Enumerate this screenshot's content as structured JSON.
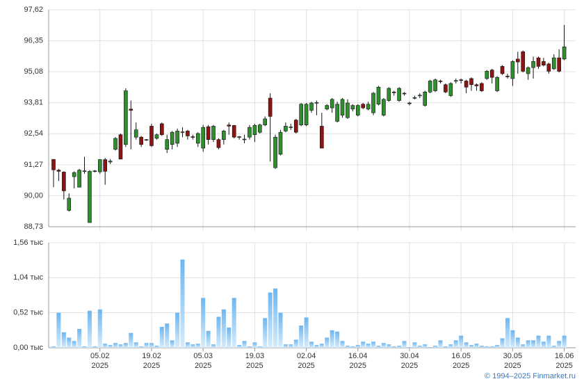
{
  "chart_data": [
    {
      "type": "candlestick",
      "open": [
        91.49,
        91.05,
        90.97,
        89.4,
        90.78,
        90.35,
        91.0,
        88.9,
        91.0,
        90.98,
        91.48,
        91.38,
        91.9,
        92.5,
        92.1,
        93.55,
        92.4,
        92.4,
        92.3,
        92.85,
        92.35,
        92.95,
        91.9,
        92.1,
        92.15,
        92.6,
        92.65,
        92.42,
        92.15,
        91.95,
        92.83,
        92.3,
        92.3,
        92.3,
        92.9,
        92.88,
        92.4,
        92.3,
        92.4,
        92.5,
        92.6,
        92.9,
        94.0,
        91.15,
        91.7,
        92.65,
        92.8,
        93.1,
        92.9,
        92.9,
        93.5,
        93.8,
        92.85,
        93.55,
        93.6,
        93.05,
        93.3,
        93.2,
        93.55,
        93.3,
        93.75,
        93.55,
        93.4,
        93.75,
        93.3,
        93.9,
        94.25,
        93.9,
        94.2,
        93.8,
        94.0,
        94.1,
        93.7,
        94.25,
        94.3,
        94.7,
        94.55,
        94.1,
        94.7,
        94.75,
        94.7,
        94.8,
        94.55,
        94.6,
        94.8,
        95.15,
        94.3,
        95.3,
        94.9,
        94.8,
        95.6,
        95.9,
        95.0,
        95.25,
        95.65,
        95.5,
        95.4,
        95.2,
        95.65,
        95.6
      ],
      "high": [
        91.49,
        91.1,
        91.0,
        90.1,
        91.0,
        91.1,
        91.6,
        91.05,
        91.05,
        91.5,
        91.55,
        91.5,
        92.4,
        92.55,
        94.4,
        93.9,
        93.0,
        92.45,
        92.32,
        92.95,
        92.55,
        93.0,
        92.5,
        92.65,
        92.75,
        92.8,
        92.7,
        92.5,
        92.6,
        92.9,
        92.9,
        92.9,
        92.35,
        92.7,
        93.0,
        92.9,
        92.45,
        92.5,
        92.9,
        92.95,
        92.95,
        93.25,
        94.2,
        92.5,
        92.7,
        93.0,
        92.95,
        93.15,
        93.8,
        93.8,
        93.85,
        93.9,
        93.4,
        93.75,
        94.0,
        93.85,
        94.0,
        93.95,
        93.75,
        93.75,
        93.8,
        93.85,
        94.25,
        94.5,
        94.0,
        94.45,
        94.3,
        94.45,
        94.25,
        93.85,
        94.1,
        94.2,
        94.3,
        94.75,
        94.8,
        94.75,
        94.6,
        94.65,
        94.8,
        94.8,
        94.75,
        94.85,
        94.6,
        94.65,
        95.15,
        95.2,
        94.9,
        95.35,
        95.0,
        95.55,
        95.9,
        95.95,
        95.3,
        95.7,
        95.7,
        95.65,
        95.45,
        95.8,
        96.0,
        97.0
      ],
      "low": [
        90.35,
        90.6,
        89.85,
        89.35,
        90.3,
        90.35,
        90.9,
        88.9,
        90.95,
        90.9,
        90.45,
        91.3,
        91.85,
        91.5,
        92.0,
        91.9,
        92.3,
        92.0,
        92.25,
        92.0,
        92.3,
        92.45,
        91.75,
        91.9,
        92.0,
        92.4,
        92.3,
        92.3,
        92.0,
        91.8,
        92.1,
        92.2,
        91.9,
        92.1,
        92.5,
        92.35,
        92.3,
        92.15,
        92.3,
        92.2,
        92.55,
        92.85,
        91.4,
        91.1,
        91.65,
        92.6,
        92.7,
        92.55,
        92.85,
        92.85,
        93.4,
        93.3,
        91.95,
        93.5,
        93.4,
        93.0,
        93.2,
        93.15,
        93.45,
        93.25,
        93.55,
        93.5,
        93.3,
        93.7,
        93.25,
        93.85,
        94.1,
        93.85,
        94.1,
        93.7,
        93.95,
        94.0,
        93.65,
        94.2,
        94.25,
        94.6,
        94.2,
        94.05,
        94.6,
        94.6,
        94.2,
        94.3,
        94.3,
        94.25,
        94.75,
        94.6,
        94.25,
        94.95,
        94.8,
        94.5,
        95.0,
        95.05,
        94.75,
        94.8,
        95.2,
        95.3,
        95.0,
        95.15,
        95.05,
        95.55
      ],
      "close": [
        91.06,
        91.0,
        90.2,
        89.9,
        90.95,
        91.05,
        91.02,
        91.0,
        91.02,
        91.48,
        91.0,
        91.42,
        92.35,
        91.5,
        94.3,
        93.5,
        92.7,
        92.1,
        92.28,
        92.05,
        92.5,
        92.5,
        92.3,
        92.6,
        92.65,
        92.62,
        92.45,
        92.4,
        92.55,
        92.8,
        92.3,
        92.85,
        91.97,
        92.65,
        92.85,
        92.4,
        92.42,
        92.32,
        92.8,
        92.88,
        92.9,
        93.15,
        93.25,
        92.4,
        92.6,
        92.85,
        92.82,
        92.6,
        93.75,
        93.75,
        93.8,
        93.82,
        91.95,
        93.7,
        93.95,
        93.75,
        93.95,
        93.8,
        93.7,
        93.7,
        93.6,
        93.75,
        94.2,
        94.45,
        93.95,
        94.4,
        94.22,
        94.4,
        94.18,
        93.78,
        94.02,
        94.12,
        94.25,
        94.7,
        94.75,
        94.68,
        94.25,
        94.6,
        94.72,
        94.73,
        94.45,
        94.55,
        94.5,
        94.3,
        95.1,
        94.85,
        94.85,
        95.0,
        94.88,
        95.5,
        95.48,
        95.1,
        95.25,
        95.5,
        95.3,
        95.35,
        95.1,
        95.65,
        95.1,
        96.1
      ],
      "up_color": "#2f8f2f",
      "down_color": "#8b1515",
      "ylim": [
        88.73,
        97.62
      ],
      "yticks": [
        {
          "value": 88.73,
          "label": "88,73"
        },
        {
          "value": 90.0,
          "label": "90,00"
        },
        {
          "value": 91.27,
          "label": "91,27"
        },
        {
          "value": 92.54,
          "label": "92,54"
        },
        {
          "value": 93.81,
          "label": "93,81"
        },
        {
          "value": 95.08,
          "label": "95,08"
        },
        {
          "value": 96.35,
          "label": "96,35"
        },
        {
          "value": 97.62,
          "label": "97,62"
        }
      ],
      "grid": true
    },
    {
      "type": "bar",
      "categories": [
        null,
        null,
        null,
        null,
        null,
        null,
        null,
        null,
        null,
        [
          "05.02",
          "2025"
        ],
        null,
        null,
        null,
        null,
        null,
        null,
        null,
        null,
        null,
        [
          "19.02",
          "2025"
        ],
        null,
        null,
        null,
        null,
        null,
        null,
        null,
        null,
        null,
        [
          "05.03",
          "2025"
        ],
        null,
        null,
        null,
        null,
        null,
        null,
        null,
        null,
        null,
        [
          "19.03",
          "2025"
        ],
        null,
        null,
        null,
        null,
        null,
        null,
        null,
        null,
        null,
        [
          "02.04",
          "2025"
        ],
        null,
        null,
        null,
        null,
        null,
        null,
        null,
        null,
        null,
        [
          "16.04",
          "2025"
        ],
        null,
        null,
        null,
        null,
        null,
        null,
        null,
        null,
        null,
        [
          "30.04",
          "2025"
        ],
        null,
        null,
        null,
        null,
        null,
        null,
        null,
        null,
        null,
        [
          "16.05",
          "2025"
        ],
        null,
        null,
        null,
        null,
        null,
        null,
        null,
        null,
        null,
        [
          "30.05",
          "2025"
        ],
        null,
        null,
        null,
        null,
        null,
        null,
        null,
        null,
        null,
        [
          "16.06",
          "2025"
        ]
      ],
      "values": [
        0.02,
        0.52,
        0.23,
        0.15,
        0.1,
        0.28,
        0.02,
        0.55,
        0.02,
        0.57,
        0.06,
        0.04,
        0.07,
        0.05,
        0.07,
        0.22,
        0.08,
        0.02,
        0.07,
        0.07,
        0.03,
        0.31,
        0.36,
        0.11,
        0.52,
        1.31,
        0.08,
        0.05,
        0.06,
        0.74,
        0.25,
        0.05,
        0.46,
        0.57,
        0.3,
        0.74,
        0.04,
        0.1,
        0.02,
        0.08,
        0.02,
        0.44,
        0.82,
        0.88,
        0.52,
        0.05,
        0.05,
        0.12,
        0.33,
        0.45,
        0.09,
        0.04,
        0.06,
        0.15,
        0.26,
        0.24,
        0.1,
        0.03,
        0.02,
        0.04,
        0.09,
        0.06,
        0.09,
        0.03,
        0.07,
        0.05,
        0.02,
        0.03,
        0.1,
        0.01,
        0.08,
        0.03,
        0.05,
        0.01,
        0.03,
        0.11,
        0.02,
        0.05,
        0.11,
        0.18,
        0.08,
        0.04,
        0.06,
        0.03,
        0.02,
        0.02,
        0.04,
        0.14,
        0.44,
        0.26,
        0.15,
        0.05,
        0.11,
        0.11,
        0.18,
        0.09,
        0.18,
        0.03,
        0.1,
        0.18
      ],
      "color": "#7cc0f2",
      "ylim": [
        0,
        1.56
      ],
      "yticks": [
        {
          "value": 0,
          "label": "0,00 тыс"
        },
        {
          "value": 0.52,
          "label": "0,52 тыс"
        },
        {
          "value": 1.04,
          "label": "1,04 тыс"
        },
        {
          "value": 1.56,
          "label": "1,56 тыс"
        }
      ],
      "grid": true
    }
  ],
  "footer": "© 1994–2025 Finmarket.ru"
}
